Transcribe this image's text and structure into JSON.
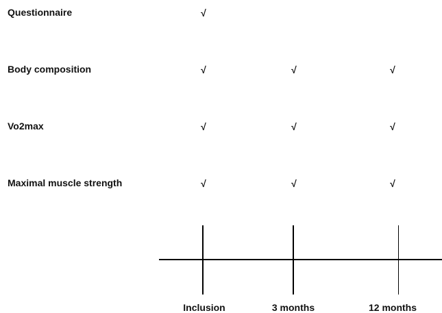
{
  "rows": [
    {
      "label": "Questionnaire",
      "marks": [
        "√",
        "",
        ""
      ]
    },
    {
      "label": "Body composition",
      "marks": [
        "√",
        "√",
        "√"
      ]
    },
    {
      "label": "Vo2max",
      "marks": [
        "√",
        "√",
        "√"
      ]
    },
    {
      "label": "Maximal muscle strength",
      "marks": [
        "√",
        "√",
        "√"
      ]
    }
  ],
  "timepoints": [
    "Inclusion",
    "3 months",
    "12 months"
  ]
}
